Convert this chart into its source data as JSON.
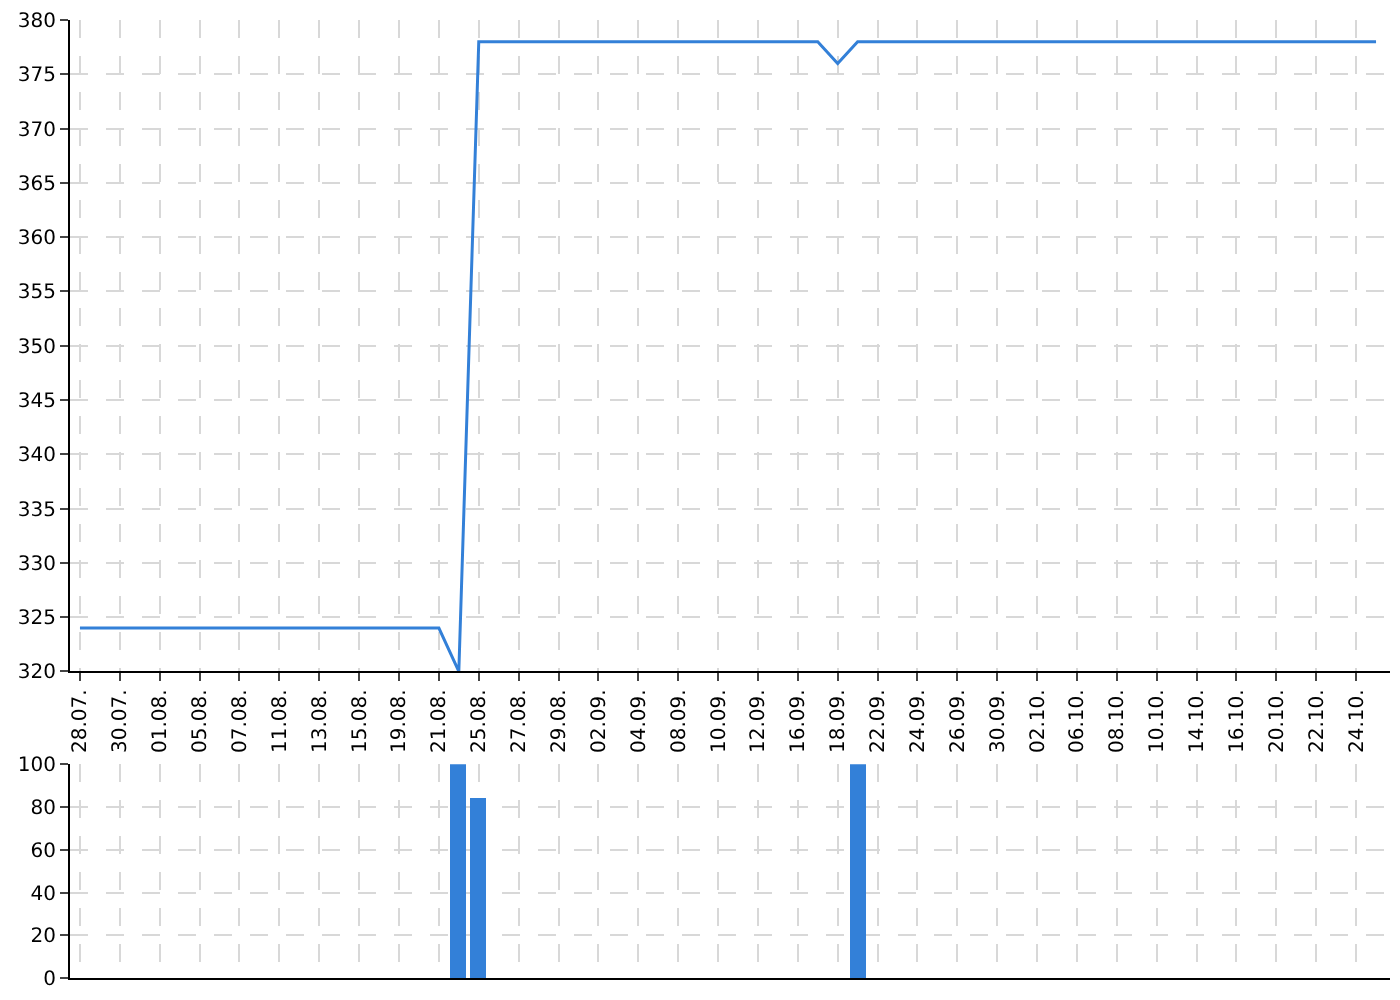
{
  "chart_data": [
    {
      "type": "line",
      "categories": [
        "28.07.",
        null,
        "30.07.",
        null,
        "01.08.",
        null,
        "05.08.",
        null,
        "07.08.",
        null,
        "11.08.",
        null,
        "13.08.",
        null,
        "15.08.",
        null,
        "19.08.",
        null,
        "21.08.",
        null,
        "25.08.",
        null,
        "27.08.",
        null,
        "29.08.",
        null,
        "02.09.",
        null,
        "04.09.",
        null,
        "08.09.",
        null,
        "10.09.",
        null,
        "12.09.",
        null,
        "16.09.",
        null,
        "18.09.",
        null,
        "22.09.",
        null,
        "24.09.",
        null,
        "26.09.",
        null,
        "30.09.",
        null,
        "02.10.",
        null,
        "06.10.",
        null,
        "08.10.",
        null,
        "10.10.",
        null,
        "14.10.",
        null,
        "16.10.",
        null,
        "20.10.",
        null,
        "22.10.",
        null,
        "24.10.",
        null
      ],
      "series": [
        {
          "color": "#3380d8",
          "values": [
            324,
            324,
            324,
            324,
            324,
            324,
            324,
            324,
            324,
            324,
            324,
            324,
            324,
            324,
            324,
            324,
            324,
            324,
            324,
            320,
            378,
            378,
            378,
            378,
            378,
            378,
            378,
            378,
            378,
            378,
            378,
            378,
            378,
            378,
            378,
            378,
            378,
            378,
            376,
            378,
            378,
            378,
            378,
            378,
            378,
            378,
            378,
            378,
            378,
            378,
            378,
            378,
            378,
            378,
            378,
            378,
            378,
            378,
            378,
            378,
            378,
            378,
            378,
            378,
            378,
            378
          ]
        }
      ],
      "ylim": [
        320,
        380
      ],
      "yticks": [
        320,
        325,
        330,
        335,
        340,
        345,
        350,
        355,
        360,
        365,
        370,
        375,
        380
      ],
      "grid": true
    },
    {
      "type": "bar",
      "categories": [
        "28.07.",
        null,
        "30.07.",
        null,
        "01.08.",
        null,
        "05.08.",
        null,
        "07.08.",
        null,
        "11.08.",
        null,
        "13.08.",
        null,
        "15.08.",
        null,
        "19.08.",
        null,
        "21.08.",
        null,
        "25.08.",
        null,
        "27.08.",
        null,
        "29.08.",
        null,
        "02.09.",
        null,
        "04.09.",
        null,
        "08.09.",
        null,
        "10.09.",
        null,
        "12.09.",
        null,
        "16.09.",
        null,
        "18.09.",
        null,
        "22.09.",
        null,
        "24.09.",
        null,
        "26.09.",
        null,
        "30.09.",
        null,
        "02.10.",
        null,
        "06.10.",
        null,
        "08.10.",
        null,
        "10.10.",
        null,
        "14.10.",
        null,
        "16.10.",
        null,
        "20.10.",
        null,
        "22.10.",
        null,
        "24.10.",
        null
      ],
      "series": [
        {
          "color": "#3380d8",
          "values": [
            0,
            0,
            0,
            0,
            0,
            0,
            0,
            0,
            0,
            0,
            0,
            0,
            0,
            0,
            0,
            0,
            0,
            0,
            0,
            100,
            84,
            0,
            0,
            0,
            0,
            0,
            0,
            0,
            0,
            0,
            0,
            0,
            0,
            0,
            0,
            0,
            0,
            0,
            0,
            100,
            0,
            0,
            0,
            0,
            0,
            0,
            0,
            0,
            0,
            0,
            0,
            0,
            0,
            0,
            0,
            0,
            0,
            0,
            0,
            0,
            0,
            0,
            0,
            0,
            0,
            0
          ]
        }
      ],
      "ylim": [
        0,
        100
      ],
      "yticks": [
        0,
        20,
        40,
        60,
        80,
        100
      ],
      "grid": true,
      "tick_labels": "y"
    }
  ]
}
